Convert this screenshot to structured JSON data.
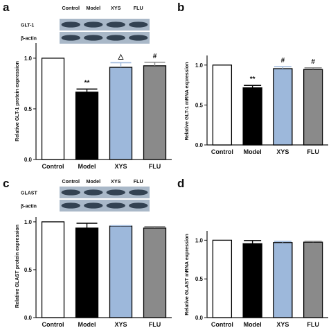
{
  "chart_data": [
    {
      "panel": "a",
      "type": "bar",
      "ylabel": "Relative GLT-1 protein expression",
      "categories": [
        "Control",
        "Model",
        "XYS",
        "FLU"
      ],
      "values": [
        1.0,
        0.665,
        0.91,
        0.925
      ],
      "errors": [
        0.0,
        0.03,
        0.045,
        0.035
      ],
      "colors": [
        "#ffffff",
        "#000000",
        "#9db8db",
        "#8a8a8a"
      ],
      "annotations": [
        "",
        "**",
        "△",
        "#"
      ],
      "ylim": [
        0,
        1.15
      ],
      "yticks": [
        "0.0",
        "0.5",
        "1.0"
      ],
      "blot": {
        "lanes": [
          "Control",
          "Model",
          "XYS",
          "FLU"
        ],
        "rows": [
          "GLT-1",
          "β-actin"
        ]
      }
    },
    {
      "panel": "b",
      "type": "bar",
      "ylabel": "Relative GLT-1 mRNA expression",
      "categories": [
        "Control",
        "Model",
        "XYS",
        "FLU"
      ],
      "values": [
        1.0,
        0.715,
        0.955,
        0.945
      ],
      "errors": [
        0.0,
        0.03,
        0.025,
        0.02
      ],
      "colors": [
        "#ffffff",
        "#000000",
        "#9db8db",
        "#8a8a8a"
      ],
      "annotations": [
        "",
        "**",
        "#",
        "#"
      ],
      "ylim": [
        0,
        1.12
      ],
      "yticks": [
        "0.0",
        "0.5",
        "1.0"
      ]
    },
    {
      "panel": "c",
      "type": "bar",
      "ylabel": "Relative GLAST protein expression",
      "categories": [
        "Control",
        "Model",
        "XYS",
        "FLU"
      ],
      "values": [
        1.0,
        0.935,
        0.955,
        0.935
      ],
      "errors": [
        0.0,
        0.05,
        0.005,
        0.015
      ],
      "colors": [
        "#ffffff",
        "#000000",
        "#9db8db",
        "#8a8a8a"
      ],
      "annotations": [
        "",
        "",
        "",
        ""
      ],
      "ylim": [
        0,
        1.05
      ],
      "yticks": [
        "0.0",
        "0.5",
        "1.0"
      ],
      "blot": {
        "lanes": [
          "Control",
          "Model",
          "XYS",
          "FLU"
        ],
        "rows": [
          "GLAST",
          "β-actin"
        ]
      }
    },
    {
      "panel": "d",
      "type": "bar",
      "ylabel": "Relative GLAST mRNA expression",
      "categories": [
        "Control",
        "Model",
        "XYS",
        "FLU"
      ],
      "values": [
        1.0,
        0.955,
        0.97,
        0.975
      ],
      "errors": [
        0.0,
        0.04,
        0.015,
        0.01
      ],
      "colors": [
        "#ffffff",
        "#000000",
        "#9db8db",
        "#8a8a8a"
      ],
      "annotations": [
        "",
        "",
        "",
        ""
      ],
      "ylim": [
        0,
        1.12
      ],
      "yticks": [
        "0.0",
        "0.5",
        "1.0"
      ]
    }
  ]
}
